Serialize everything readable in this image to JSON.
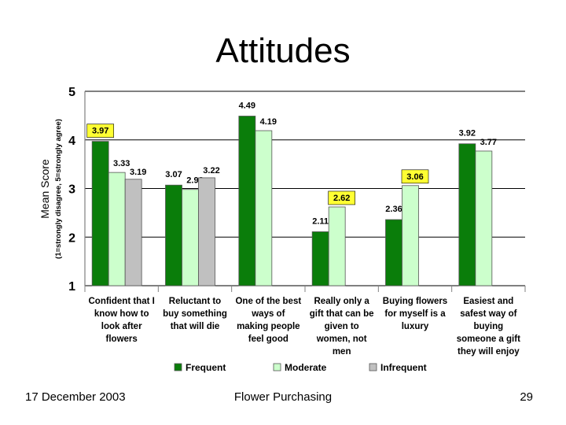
{
  "slide": {
    "title": "Attitudes",
    "footer_date": "17 December 2003",
    "footer_center": "Flower Purchasing",
    "page_number": "29"
  },
  "chart_data": {
    "type": "bar",
    "ylabel": "Mean Score",
    "ylabel_sub": "(1=strongly disagree, 5=strongly agree)",
    "ylim": [
      1,
      5
    ],
    "yticks": [
      "1",
      "2",
      "3",
      "4",
      "5"
    ],
    "grid": true,
    "legend_position": "bottom",
    "categories": [
      [
        "Confident that I",
        "know how to",
        "look after",
        "flowers"
      ],
      [
        "Reluctant to",
        "buy something",
        "that will die"
      ],
      [
        "One of the best",
        "ways of",
        "making people",
        "feel good"
      ],
      [
        "Really only a",
        "gift that can be",
        "given to",
        "women, not",
        "men"
      ],
      [
        "Buying flowers",
        "for myself is a",
        "luxury"
      ],
      [
        "Easiest and",
        "safest way of",
        "buying",
        "someone a gift",
        "they will enjoy"
      ]
    ],
    "series": [
      {
        "name": "Frequent",
        "color": "#0a7d0a",
        "values": [
          3.97,
          3.07,
          4.49,
          2.11,
          2.36,
          3.92
        ],
        "labels": [
          "3.97",
          "3.07",
          "4.49",
          "2.11",
          "2.36",
          "3.92"
        ]
      },
      {
        "name": "Moderate",
        "color": "#ccffcc",
        "values": [
          3.33,
          2.98,
          4.19,
          2.62,
          3.06,
          3.77
        ],
        "labels": [
          "3.33",
          "2.98",
          "4.19",
          "2.62",
          "3.06",
          "3.77"
        ]
      },
      {
        "name": "Infrequent",
        "color": "#c0c0c0",
        "values": [
          3.19,
          3.22,
          null,
          null,
          null,
          null
        ],
        "labels": [
          "3.19",
          "3.22",
          "",
          "",
          "",
          ""
        ]
      }
    ],
    "highlighted_labels": [
      "3.97",
      "2.62",
      "3.06"
    ],
    "highlight_color": "#ffff33"
  }
}
